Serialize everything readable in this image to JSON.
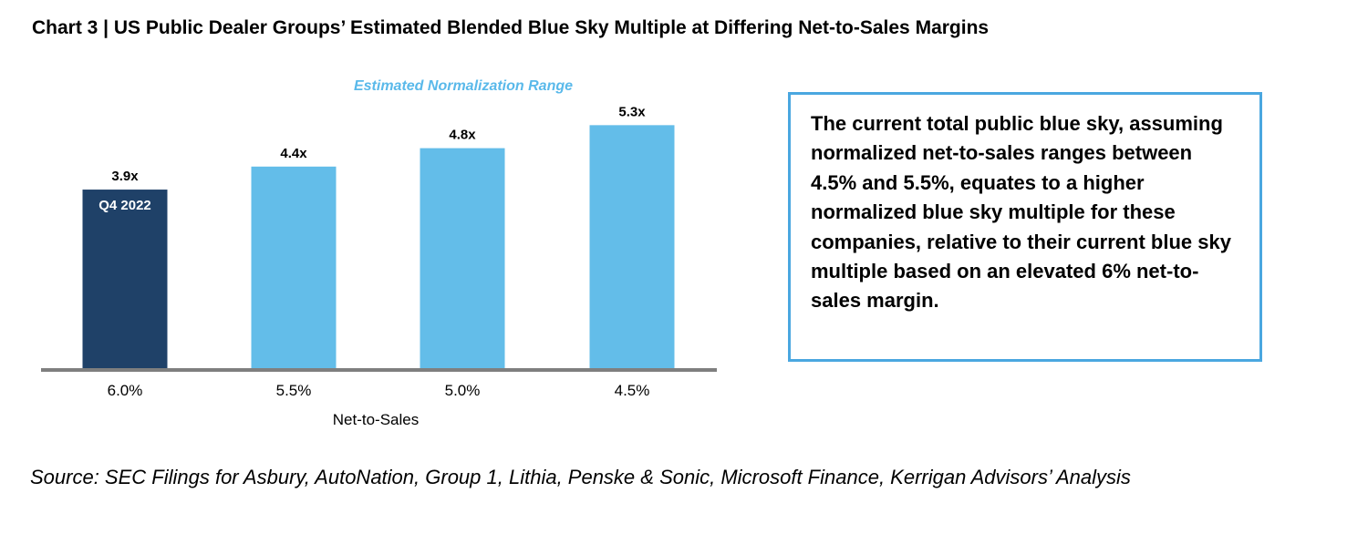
{
  "title": "Chart 3 | US Public Dealer Groups’ Estimated Blended Blue Sky Multiple at Differing Net-to-Sales Margins",
  "chart_data": {
    "type": "bar",
    "categories": [
      "6.0%",
      "5.5%",
      "5.0%",
      "4.5%"
    ],
    "values": [
      3.9,
      4.4,
      4.8,
      5.3
    ],
    "value_labels": [
      "3.9x",
      "4.4x",
      "4.8x",
      "5.3x"
    ],
    "bar_inner_labels": [
      "Q4 2022",
      "",
      "",
      ""
    ],
    "xlabel": "Net-to-Sales",
    "ylabel": "",
    "annotation": "Estimated Normalization Range",
    "colors": {
      "highlight": "#1f4168",
      "normal": "#63bde9",
      "baseline": "#7f7f7f",
      "annotation": "#5ab9ea"
    },
    "grid": false
  },
  "callout": {
    "text": "The current total public blue sky, assuming normalized net-to-sales ranges between 4.5% and 5.5%, equates to a higher normalized blue sky multiple for these companies, relative to their current blue sky multiple based on an elevated 6% net-to-sales margin.",
    "border_color": "#4aa7e0"
  },
  "source": "Source: SEC Filings for Asbury, AutoNation, Group 1, Lithia, Penske & Sonic, Microsoft Finance, Kerrigan Advisors’ Analysis"
}
